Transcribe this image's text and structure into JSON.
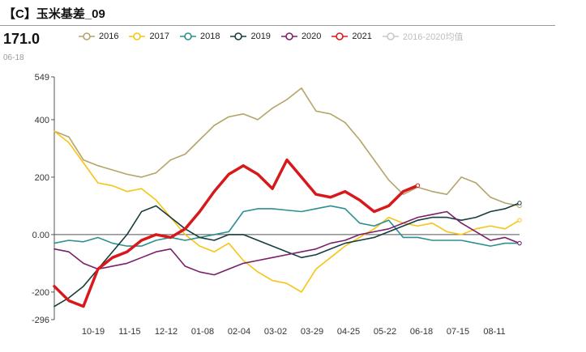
{
  "header": {
    "title": "【C】玉米基差_09",
    "latest_value": "171.0",
    "latest_date": "06-18"
  },
  "chart_data": {
    "type": "line",
    "title": "【C】玉米基差_09",
    "ylim": [
      -296,
      549
    ],
    "y_ticks": [
      {
        "value": 549,
        "label": "549"
      },
      {
        "value": 400,
        "label": "400"
      },
      {
        "value": 200,
        "label": "200"
      },
      {
        "value": 0,
        "label": "0.00"
      },
      {
        "value": -200,
        "label": "-200"
      },
      {
        "value": -296,
        "label": "-296"
      }
    ],
    "x_ticks": [
      "10-19",
      "11-15",
      "12-12",
      "01-08",
      "02-04",
      "03-02",
      "03-29",
      "04-25",
      "05-22",
      "06-18",
      "07-15",
      "08-11"
    ],
    "grid": false,
    "legend_position": "top",
    "x_days": [
      0,
      10,
      20,
      30,
      40,
      50,
      60,
      70,
      80,
      90,
      100,
      110,
      120,
      130,
      140,
      150,
      160,
      170,
      180,
      190,
      200,
      210,
      220,
      230,
      240,
      250,
      260,
      270,
      280,
      290,
      300,
      310,
      320
    ],
    "series": [
      {
        "name": "2016",
        "color": "#b5a46a",
        "width": 1.6,
        "values": [
          360,
          340,
          260,
          240,
          225,
          210,
          200,
          215,
          260,
          280,
          330,
          380,
          410,
          420,
          400,
          440,
          470,
          510,
          430,
          420,
          390,
          330,
          260,
          190,
          140,
          165,
          150,
          140,
          200,
          180,
          130,
          110,
          100
        ]
      },
      {
        "name": "2017",
        "color": "#f6c514",
        "width": 1.6,
        "values": [
          360,
          320,
          250,
          180,
          170,
          150,
          160,
          120,
          60,
          0,
          -40,
          -60,
          -30,
          -90,
          -130,
          -160,
          -170,
          -200,
          -120,
          -80,
          -40,
          -10,
          20,
          60,
          40,
          30,
          40,
          10,
          0,
          20,
          30,
          20,
          50
        ]
      },
      {
        "name": "2018",
        "color": "#2d8f8f",
        "width": 1.6,
        "values": [
          -30,
          -20,
          -25,
          -10,
          -30,
          -40,
          -40,
          -20,
          -10,
          -20,
          -10,
          0,
          10,
          80,
          90,
          90,
          85,
          80,
          90,
          100,
          90,
          40,
          30,
          50,
          -10,
          -10,
          -20,
          -20,
          -20,
          -30,
          -40,
          -30,
          -30
        ]
      },
      {
        "name": "2019",
        "color": "#173d3d",
        "width": 1.6,
        "values": [
          -250,
          -220,
          -180,
          -120,
          -60,
          0,
          80,
          100,
          60,
          20,
          -10,
          -20,
          0,
          0,
          -20,
          -40,
          -60,
          -80,
          -70,
          -50,
          -30,
          -20,
          -10,
          10,
          30,
          50,
          60,
          60,
          50,
          60,
          80,
          90,
          110
        ]
      },
      {
        "name": "2020",
        "color": "#7a1f6a",
        "width": 1.6,
        "values": [
          -50,
          -60,
          -100,
          -120,
          -110,
          -100,
          -80,
          -60,
          -50,
          -110,
          -130,
          -140,
          -120,
          -100,
          -90,
          -80,
          -70,
          -60,
          -50,
          -30,
          -20,
          0,
          10,
          20,
          40,
          60,
          70,
          80,
          40,
          10,
          -20,
          -10,
          -30
        ]
      },
      {
        "name": "2021",
        "color": "#d7191c",
        "width": 3.5,
        "values": [
          -180,
          -230,
          -250,
          -120,
          -80,
          -60,
          -20,
          0,
          -10,
          20,
          80,
          150,
          210,
          240,
          210,
          160,
          260,
          200,
          140,
          130,
          150,
          120,
          80,
          100,
          150,
          171
        ]
      },
      {
        "name": "2016-2020均值",
        "color": "#c8c8c8",
        "width": 1.4,
        "show_line": false,
        "values": []
      }
    ]
  }
}
